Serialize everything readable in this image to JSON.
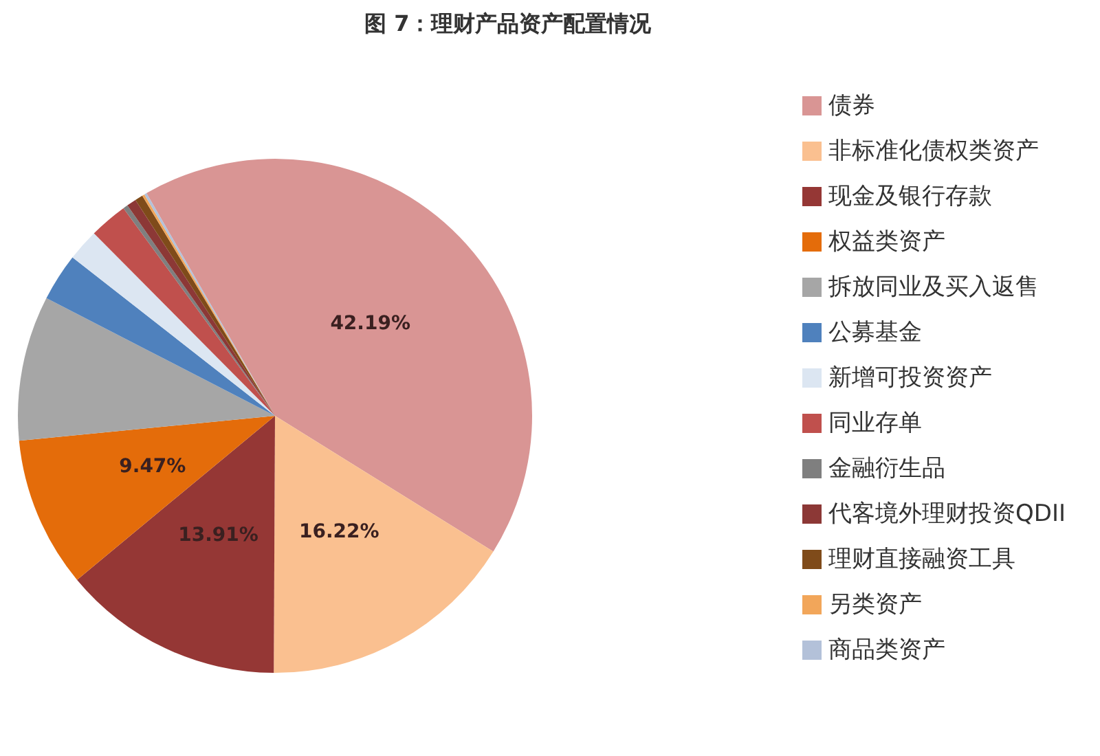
{
  "chart_data": {
    "type": "pie",
    "title": "图 7：理财产品资产配置情况",
    "categories": [
      "债券",
      "非标准化债权类资产",
      "现金及银行存款",
      "权益类资产",
      "拆放同业及买入返售",
      "公募基金",
      "新增可投资资产",
      "同业存单",
      "金融衍生品",
      "代客境外理财投资QDII",
      "理财直接融资工具",
      "另类资产",
      "商品类资产"
    ],
    "values": [
      42.19,
      16.22,
      13.91,
      9.47,
      9.11,
      3.0,
      2.0,
      2.4,
      0.3,
      0.6,
      0.5,
      0.15,
      0.15
    ],
    "value_labels": [
      "42.19%",
      "16.22%",
      "13.91%",
      "9.47%",
      null,
      null,
      null,
      null,
      null,
      null,
      null,
      null,
      null
    ],
    "colors": [
      "#d99594",
      "#fac090",
      "#953735",
      "#e46c0a",
      "#a6a6a6",
      "#4f81bd",
      "#dce6f2",
      "#c0504d",
      "#7f7f7f",
      "#8c3836",
      "#7f4b1a",
      "#f2a65a",
      "#b3c1d9"
    ],
    "legend": "right"
  }
}
